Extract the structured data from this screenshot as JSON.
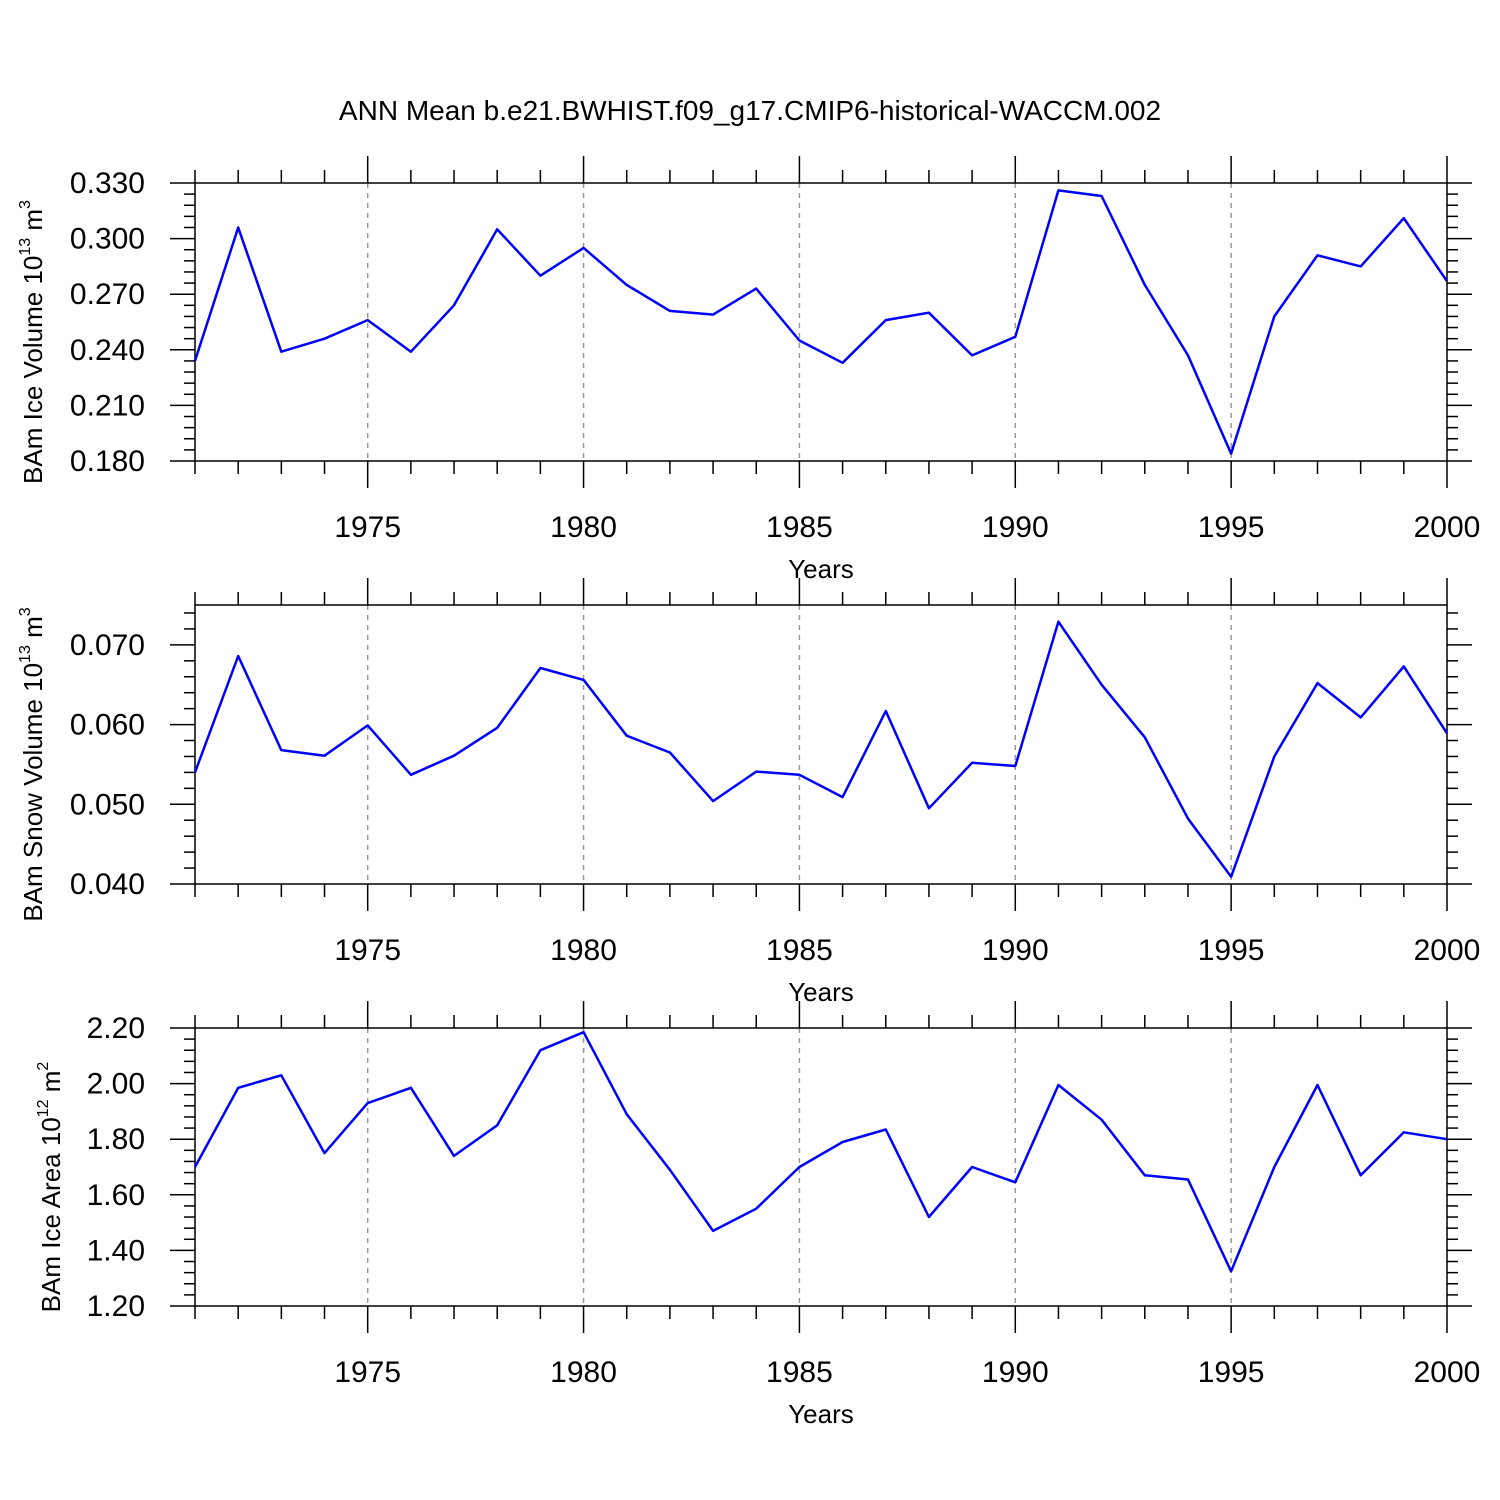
{
  "title": "ANN Mean b.e21.BWHIST.f09_g17.CMIP6-historical-WACCM.002",
  "colors": {
    "line": "#0000ff",
    "axis": "#000000",
    "grid": "#999999"
  },
  "chart_data": [
    {
      "type": "line",
      "ylabel": "BAm Ice Volume 10",
      "ylabel_exp": "13",
      "ylabel_unit": "m",
      "ylabel_unit_exp": "3",
      "xlabel": "Years",
      "xlim": [
        1971,
        2000
      ],
      "ylim": [
        0.18,
        0.33
      ],
      "yticks": [
        "0.180",
        "0.210",
        "0.240",
        "0.270",
        "0.300",
        "0.330"
      ],
      "xticks": [
        "1975",
        "1980",
        "1985",
        "1990",
        "1995",
        "2000"
      ],
      "grid": "vertical dashed at major x ticks",
      "series": [
        {
          "x": [
            1971,
            1972,
            1973,
            1974,
            1975,
            1976,
            1977,
            1978,
            1979,
            1980,
            1981,
            1982,
            1983,
            1984,
            1985,
            1986,
            1987,
            1988,
            1989,
            1990,
            1991,
            1992,
            1993,
            1994,
            1995,
            1996,
            1997,
            1998,
            1999,
            2000
          ],
          "values": [
            0.234,
            0.306,
            0.239,
            0.246,
            0.256,
            0.239,
            0.264,
            0.305,
            0.28,
            0.295,
            0.275,
            0.261,
            0.259,
            0.273,
            0.245,
            0.233,
            0.256,
            0.26,
            0.237,
            0.247,
            0.326,
            0.323,
            0.275,
            0.237,
            0.184,
            0.258,
            0.291,
            0.285,
            0.311,
            0.277
          ]
        }
      ]
    },
    {
      "type": "line",
      "ylabel": "BAm Snow Volume 10",
      "ylabel_exp": "13",
      "ylabel_unit": "m",
      "ylabel_unit_exp": "3",
      "xlabel": "Years",
      "xlim": [
        1971,
        2000
      ],
      "ylim": [
        0.04,
        0.075
      ],
      "yticks": [
        "0.040",
        "0.050",
        "0.060",
        "0.070"
      ],
      "xticks": [
        "1975",
        "1980",
        "1985",
        "1990",
        "1995",
        "2000"
      ],
      "grid": "vertical dashed at major x ticks",
      "series": [
        {
          "x": [
            1971,
            1972,
            1973,
            1974,
            1975,
            1976,
            1977,
            1978,
            1979,
            1980,
            1981,
            1982,
            1983,
            1984,
            1985,
            1986,
            1987,
            1988,
            1989,
            1990,
            1991,
            1992,
            1993,
            1994,
            1995,
            1996,
            1997,
            1998,
            1999,
            2000
          ],
          "values": [
            0.054,
            0.0686,
            0.0568,
            0.0561,
            0.0599,
            0.0537,
            0.0561,
            0.0596,
            0.0671,
            0.0656,
            0.0586,
            0.0565,
            0.0504,
            0.0541,
            0.0537,
            0.0509,
            0.0617,
            0.0495,
            0.0552,
            0.0548,
            0.0729,
            0.065,
            0.0584,
            0.0482,
            0.0409,
            0.056,
            0.0652,
            0.0609,
            0.0673,
            0.0589
          ]
        }
      ]
    },
    {
      "type": "line",
      "ylabel": "BAm Ice Area 10",
      "ylabel_exp": "12",
      "ylabel_unit": "m",
      "ylabel_unit_exp": "2",
      "xlabel": "Years",
      "xlim": [
        1971,
        2000
      ],
      "ylim": [
        1.2,
        2.2
      ],
      "yticks": [
        "1.20",
        "1.40",
        "1.60",
        "1.80",
        "2.00",
        "2.20"
      ],
      "xticks": [
        "1975",
        "1980",
        "1985",
        "1990",
        "1995",
        "2000"
      ],
      "grid": "vertical dashed at major x ticks",
      "series": [
        {
          "x": [
            1971,
            1972,
            1973,
            1974,
            1975,
            1976,
            1977,
            1978,
            1979,
            1980,
            1981,
            1982,
            1983,
            1984,
            1985,
            1986,
            1987,
            1988,
            1989,
            1990,
            1991,
            1992,
            1993,
            1994,
            1995,
            1996,
            1997,
            1998,
            1999,
            2000
          ],
          "values": [
            1.7,
            1.985,
            2.03,
            1.75,
            1.93,
            1.985,
            1.74,
            1.85,
            2.12,
            2.185,
            1.89,
            1.69,
            1.47,
            1.55,
            1.7,
            1.79,
            1.835,
            1.52,
            1.7,
            1.645,
            1.995,
            1.87,
            1.67,
            1.655,
            1.325,
            1.7,
            1.995,
            1.67,
            1.825,
            1.8
          ]
        }
      ]
    }
  ]
}
